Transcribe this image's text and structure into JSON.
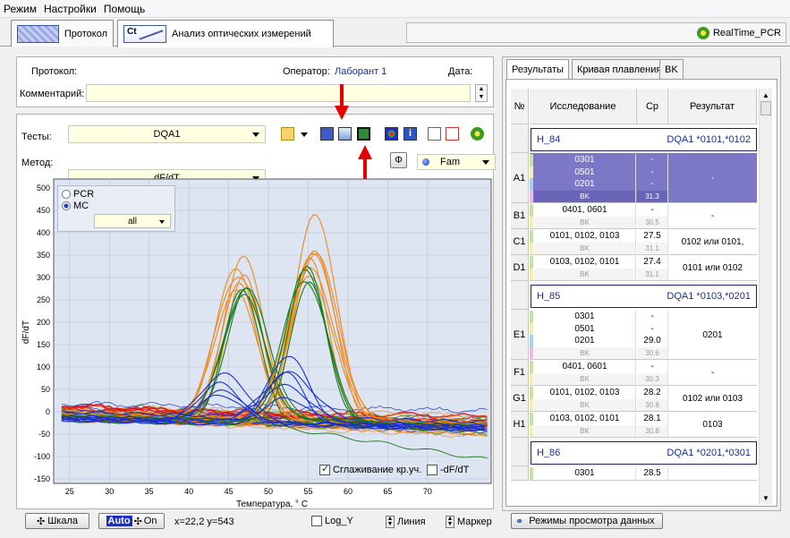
{
  "menu": [
    "Режим",
    "Настройки",
    "Помощь"
  ],
  "tabs": [
    {
      "label": "Протокол",
      "icon": "protocol-icon"
    },
    {
      "label": "Анализ оптических измерений",
      "icon": "ct-analysis-icon"
    }
  ],
  "app_name": "RealTime_PCR",
  "protocol": {
    "protocol_label": "Протокол:",
    "operator_label": "Оператор:",
    "operator_value": "Лаборант 1",
    "date_label": "Дата:",
    "comment_label": "Комментарий:"
  },
  "controls": {
    "tests_label": "Тесты:",
    "tests_value": "DQA1",
    "method_label": "Метод:",
    "method_value": "dF/dT",
    "channel_value": "Fam",
    "phi_label": "Φ"
  },
  "chart_overlay": {
    "radio_pcr": "PCR",
    "radio_mc": "MC",
    "mc_selected": true,
    "filter_value": "all",
    "smoothing_label": "Сглаживание кр.уч.",
    "smoothing_checked": true,
    "neg_dfdt_label": "-dF/dT",
    "neg_dfdt_checked": false
  },
  "chart_data": {
    "type": "line",
    "xlabel": "Температура, ° С",
    "ylabel": "dF/dT",
    "xlim": [
      23,
      78
    ],
    "ylim": [
      -160,
      520
    ],
    "xticks": [
      25,
      30,
      35,
      40,
      45,
      50,
      55,
      60,
      65,
      70
    ],
    "yticks": [
      500,
      450,
      400,
      350,
      300,
      250,
      200,
      150,
      100,
      50,
      0,
      -50,
      -100,
      -150
    ],
    "grid": true,
    "series_colors": [
      "#f08a1c",
      "#1a7a1a",
      "#1a2fd0",
      "#e81010"
    ],
    "peaks": [
      {
        "center": 46.5,
        "heights": [
          360,
          345,
          330,
          318,
          300,
          290
        ],
        "color": "#f08a1c"
      },
      {
        "center": 46.8,
        "heights": [
          300,
          295,
          285,
          275
        ],
        "color": "#1a7a1a"
      },
      {
        "center": 55.5,
        "heights": [
          470,
          395,
          380,
          370,
          360,
          340,
          320
        ],
        "color": "#f08a1c"
      },
      {
        "center": 55.0,
        "heights": [
          345,
          340,
          325,
          315
        ],
        "color": "#1a7a1a"
      },
      {
        "center": 52.0,
        "heights": [
          150,
          120,
          100,
          80,
          60
        ],
        "color": "#1a2fd0"
      },
      {
        "center": 44.0,
        "heights": [
          110,
          90,
          70,
          60
        ],
        "color": "#1a2fd0"
      }
    ]
  },
  "bottom_bar": {
    "scale_button": "Шкала",
    "auto_button": "Auto",
    "on_label": "On",
    "coords": "x=22,2 y=543",
    "log_y": "Log_Y",
    "line_label": "Линия",
    "marker_label": "Маркер",
    "view_modes_button": "Режимы просмотра данных"
  },
  "results": {
    "tabs": [
      "Результаты",
      "Кривая плавления",
      "BK"
    ],
    "columns": [
      "№",
      "Исследование",
      "Cp",
      "Результат"
    ],
    "groups": [
      {
        "name": "H_84",
        "genotype": "DQA1 *0101,*0102"
      },
      {
        "name": "H_85",
        "genotype": "DQA1 *0103,*0201"
      },
      {
        "name": "H_86",
        "genotype": "DQA1 *0201,*0301"
      }
    ],
    "rows": [
      {
        "id": "A1",
        "selected": true,
        "lines": [
          {
            "allele": "0301",
            "cp": "-"
          },
          {
            "allele": "0501",
            "cp": "-"
          },
          {
            "allele": "0201",
            "cp": "-"
          },
          {
            "allele": "BK",
            "cp": "31.3"
          }
        ],
        "result": "-"
      },
      {
        "id": "B1",
        "lines": [
          {
            "allele": "0401, 0601",
            "cp": "-"
          },
          {
            "allele": "BK",
            "cp": "30.5"
          }
        ],
        "result": "-"
      },
      {
        "id": "C1",
        "lines": [
          {
            "allele": "0101, 0102, 0103",
            "cp": "27.5"
          },
          {
            "allele": "BK",
            "cp": "31.1"
          }
        ],
        "result": "0102 или 0101,"
      },
      {
        "id": "D1",
        "lines": [
          {
            "allele": "0103, 0102, 0101",
            "cp": "27.4"
          },
          {
            "allele": "BK",
            "cp": "31.1"
          }
        ],
        "result": "0101 или 0102"
      },
      {
        "id": "E1",
        "lines": [
          {
            "allele": "0301",
            "cp": "-"
          },
          {
            "allele": "0501",
            "cp": "-"
          },
          {
            "allele": "0201",
            "cp": "29.0"
          },
          {
            "allele": "BK",
            "cp": "30.6"
          }
        ],
        "result": "0201"
      },
      {
        "id": "F1",
        "lines": [
          {
            "allele": "0401, 0601",
            "cp": "-"
          },
          {
            "allele": "BK",
            "cp": "30.3"
          }
        ],
        "result": "-"
      },
      {
        "id": "G1",
        "lines": [
          {
            "allele": "0101, 0102, 0103",
            "cp": "28.2"
          },
          {
            "allele": "BK",
            "cp": "30.8"
          }
        ],
        "result": "0102 или 0103"
      },
      {
        "id": "H1",
        "lines": [
          {
            "allele": "0103, 0102, 0101",
            "cp": "28.1"
          },
          {
            "allele": "BK",
            "cp": "30.8"
          }
        ],
        "result": "0103"
      },
      {
        "id": "",
        "lines": [
          {
            "allele": "0301",
            "cp": "28.5"
          }
        ],
        "result": ""
      }
    ]
  }
}
